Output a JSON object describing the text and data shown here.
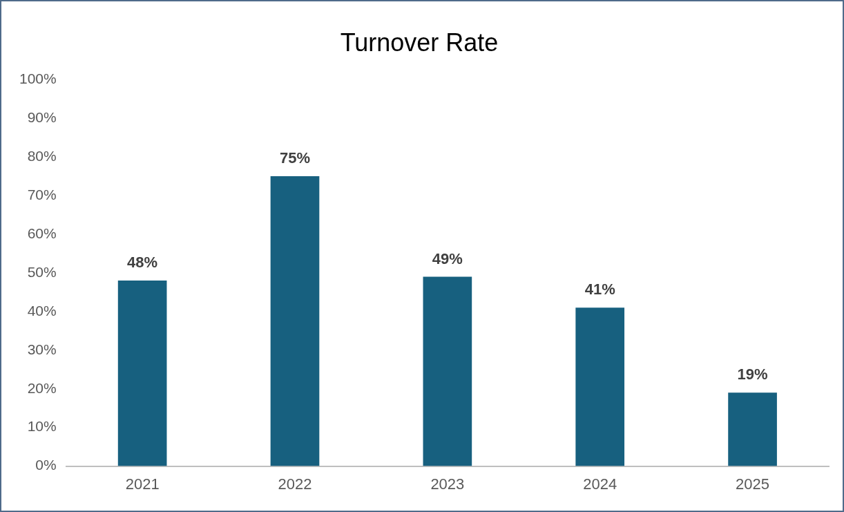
{
  "chart_data": {
    "type": "bar",
    "title": "Turnover Rate",
    "categories": [
      "2021",
      "2022",
      "2023",
      "2024",
      "2025"
    ],
    "values": [
      48,
      75,
      49,
      41,
      19
    ],
    "value_labels": [
      "48%",
      "75%",
      "49%",
      "41%",
      "19%"
    ],
    "color": "#17607f",
    "ylim": [
      0,
      100
    ],
    "yticks": [
      {
        "value": 0,
        "label": "0%"
      },
      {
        "value": 10,
        "label": "10%"
      },
      {
        "value": 20,
        "label": "20%"
      },
      {
        "value": 30,
        "label": "30%"
      },
      {
        "value": 40,
        "label": "40%"
      },
      {
        "value": 50,
        "label": "50%"
      },
      {
        "value": 60,
        "label": "60%"
      },
      {
        "value": 70,
        "label": "70%"
      },
      {
        "value": 80,
        "label": "80%"
      },
      {
        "value": 90,
        "label": "90%"
      },
      {
        "value": 100,
        "label": "100%"
      }
    ],
    "grid": false,
    "legend": false
  }
}
